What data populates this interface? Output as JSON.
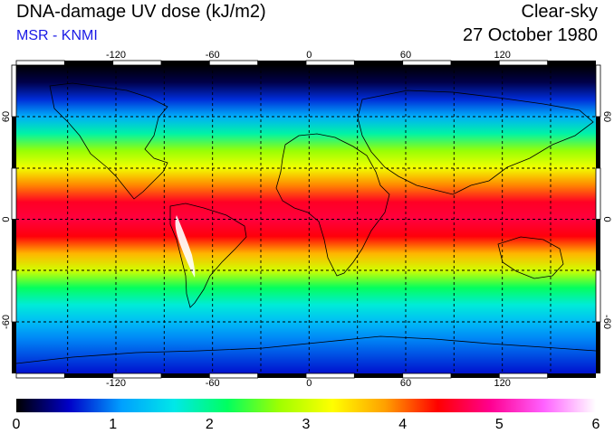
{
  "header": {
    "title": "DNA-damage UV dose (kJ/m2)",
    "subtitle": "MSR - KNMI",
    "condition": "Clear-sky",
    "date": "27 October 1980"
  },
  "map": {
    "lon_ticks": [
      "-120",
      "-60",
      "0",
      "60",
      "120"
    ],
    "lat_ticks": [
      "60",
      "0",
      "-60"
    ],
    "projection": "equirectangular",
    "grid": "dashed 30° graticule",
    "coastlines": true
  },
  "colorbar": {
    "ticks": [
      "0",
      "1",
      "2",
      "3",
      "4",
      "5",
      "6"
    ],
    "min": 0,
    "max": 6,
    "colors": [
      "#000000",
      "#0000c8",
      "#00a0ff",
      "#00e8e8",
      "#00ff60",
      "#a0ff00",
      "#ffff00",
      "#ffa000",
      "#ff0000",
      "#ff0090",
      "#ff60ff",
      "#ffffff"
    ]
  },
  "dose_by_latitude": {
    "latitudes": [
      90,
      80,
      70,
      60,
      50,
      40,
      30,
      20,
      10,
      0,
      -10,
      -20,
      -30,
      -40,
      -50,
      -60,
      -70,
      -80,
      -90
    ],
    "values": [
      0.0,
      0.2,
      0.7,
      1.2,
      1.9,
      2.7,
      3.2,
      3.9,
      4.5,
      4.6,
      4.4,
      3.7,
      3.0,
      2.2,
      1.7,
      1.3,
      1.0,
      0.8,
      0.6
    ]
  }
}
